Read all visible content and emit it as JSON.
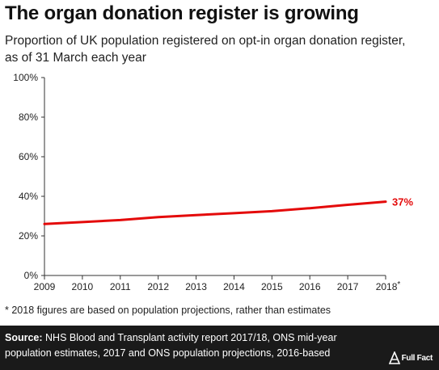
{
  "title": "The organ donation register is growing",
  "subtitle": "Proportion of UK population registered on opt-in organ donation register, as of 31 March each year",
  "footnote": "* 2018 figures are based on population projections, rather than estimates",
  "source": {
    "label": "Source:",
    "text": " NHS Blood and Transplant activity report 2017/18, ONS mid-year population estimates, 2017 and ONS population projections, 2016-based"
  },
  "brand": {
    "name": "Full Fact",
    "icon": "full-fact-logo-icon"
  },
  "colors": {
    "line": "#e40a0a",
    "axis": "#333333",
    "grid": "#dddddd"
  },
  "chart_data": {
    "type": "line",
    "x": [
      2009,
      2010,
      2011,
      2012,
      2013,
      2014,
      2015,
      2016,
      2017,
      2018
    ],
    "x_tick_labels": [
      "2009",
      "2010",
      "2011",
      "2012",
      "2013",
      "2014",
      "2015",
      "2016",
      "2017",
      "2018*"
    ],
    "series": [
      {
        "values": [
          26,
          27,
          28,
          29.5,
          30.5,
          31.5,
          32.5,
          34,
          35.7,
          37.3
        ]
      }
    ],
    "y_ticks": [
      0,
      20,
      40,
      60,
      80,
      100
    ],
    "y_tick_labels": [
      "0%",
      "20%",
      "40%",
      "60%",
      "80%",
      "100%"
    ],
    "ylim": [
      0,
      100
    ],
    "xlim": [
      2009,
      2018
    ],
    "end_label": "37%",
    "grid": false,
    "legend": "none"
  }
}
